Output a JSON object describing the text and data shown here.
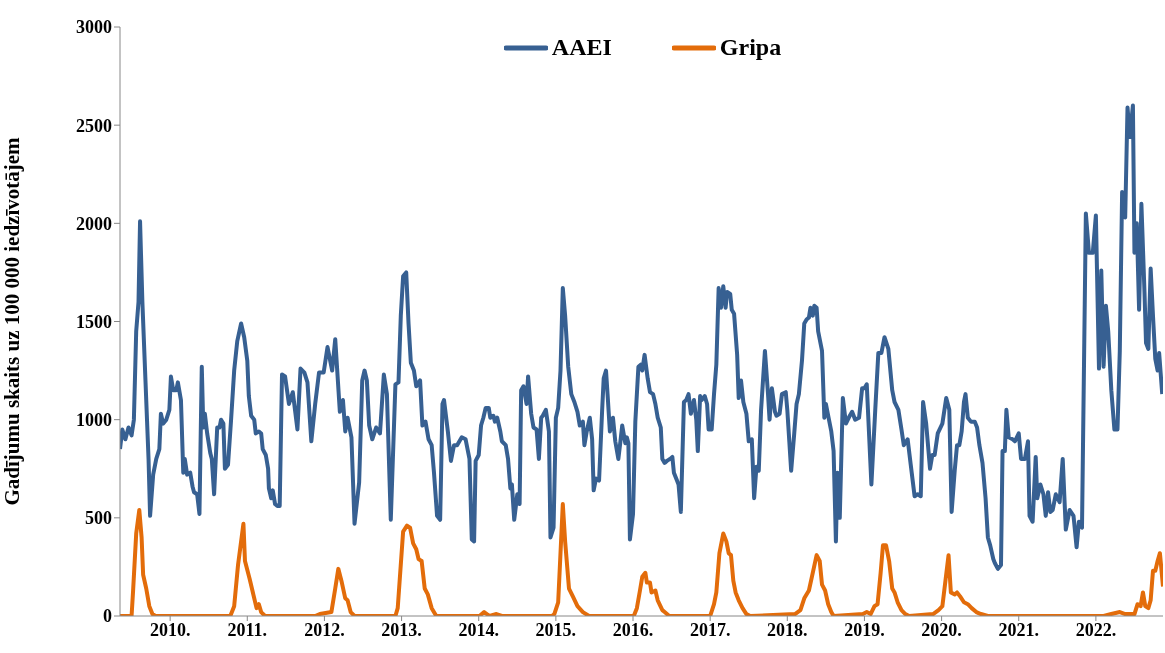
{
  "chart_data": {
    "type": "line",
    "ylabel": "Gadījumu skaits uz 100 000 iedzīvotājem",
    "xlim": [
      2009.85,
      2023.37
    ],
    "xticks": [
      {
        "value": 2010.5,
        "label": "2010."
      },
      {
        "value": 2011.5,
        "label": "2011."
      },
      {
        "value": 2012.5,
        "label": "2012."
      },
      {
        "value": 2013.5,
        "label": "2013."
      },
      {
        "value": 2014.5,
        "label": "2014."
      },
      {
        "value": 2015.5,
        "label": "2015."
      },
      {
        "value": 2016.5,
        "label": "2016."
      },
      {
        "value": 2017.5,
        "label": "2017."
      },
      {
        "value": 2018.5,
        "label": "2018."
      },
      {
        "value": 2019.5,
        "label": "2019."
      },
      {
        "value": 2020.5,
        "label": "2020."
      },
      {
        "value": 2021.5,
        "label": "2021."
      },
      {
        "value": 2022.5,
        "label": "2022."
      }
    ],
    "ylim": [
      0,
      3000
    ],
    "yticks": [
      0,
      500,
      1000,
      1500,
      2000,
      2500,
      3000
    ],
    "grid": false,
    "legend": "top",
    "marker": "none",
    "line_style": "solid",
    "series": [
      {
        "name": "AAEI",
        "color": "#376092",
        "x": [
          2009.85,
          2009.88,
          2009.92,
          2009.96,
          2010.0,
          2010.03,
          2010.06,
          2010.09,
          2010.11,
          2010.14,
          2010.18,
          2010.22,
          2010.24,
          2010.28,
          2010.32,
          2010.36,
          2010.38,
          2010.41,
          2010.45,
          2010.49,
          2010.51,
          2010.54,
          2010.58,
          2010.6,
          2010.64,
          2010.67,
          2010.69,
          2010.72,
          2010.76,
          2010.79,
          2010.81,
          2010.85,
          2010.88,
          2010.91,
          2010.93,
          2010.95,
          2010.98,
          2011.02,
          2011.04,
          2011.07,
          2011.11,
          2011.14,
          2011.16,
          2011.19,
          2011.21,
          2011.25,
          2011.29,
          2011.33,
          2011.37,
          2011.42,
          2011.46,
          2011.5,
          2011.52,
          2011.55,
          2011.59,
          2011.61,
          2011.65,
          2011.68,
          2011.7,
          2011.74,
          2011.77,
          2011.78,
          2011.81,
          2011.83,
          2011.86,
          2011.89,
          2011.92,
          2011.95,
          2011.99,
          2012.04,
          2012.09,
          2012.15,
          2012.19,
          2012.24,
          2012.28,
          2012.33,
          2012.38,
          2012.43,
          2012.49,
          2012.54,
          2012.6,
          2012.64,
          2012.7,
          2012.74,
          2012.77,
          2012.8,
          2012.85,
          2012.89,
          2012.95,
          2012.99,
          2013.02,
          2013.05,
          2013.08,
          2013.12,
          2013.17,
          2013.22,
          2013.27,
          2013.31,
          2013.36,
          2013.42,
          2013.46,
          2013.49,
          2013.52,
          2013.56,
          2013.59,
          2013.62,
          2013.66,
          2013.69,
          2013.74,
          2013.77,
          2013.81,
          2013.85,
          2013.89,
          2013.92,
          2013.96,
          2014.0,
          2014.03,
          2014.05,
          2014.1,
          2014.14,
          2014.18,
          2014.22,
          2014.28,
          2014.33,
          2014.38,
          2014.41,
          2014.44,
          2014.46,
          2014.5,
          2014.53,
          2014.56,
          2014.59,
          2014.63,
          2014.65,
          2014.69,
          2014.71,
          2014.74,
          2014.78,
          2014.8,
          2014.85,
          2014.88,
          2014.91,
          2014.93,
          2014.96,
          2015.0,
          2015.03,
          2015.05,
          2015.08,
          2015.12,
          2015.14,
          2015.18,
          2015.21,
          2015.25,
          2015.28,
          2015.31,
          2015.33,
          2015.37,
          2015.41,
          2015.43,
          2015.47,
          2015.5,
          2015.53,
          2015.56,
          2015.59,
          2015.62,
          2015.66,
          2015.7,
          2015.74,
          2015.78,
          2015.81,
          2015.85,
          2015.87,
          2015.9,
          2015.94,
          2015.97,
          2015.99,
          2016.02,
          2016.06,
          2016.1,
          2016.12,
          2016.15,
          2016.17,
          2016.2,
          2016.24,
          2016.27,
          2016.31,
          2016.34,
          2016.36,
          2016.4,
          2016.42,
          2016.44,
          2016.46,
          2016.5,
          2016.53,
          2016.57,
          2016.6,
          2016.62,
          2016.65,
          2016.69,
          2016.72,
          2016.76,
          2016.79,
          2016.82,
          2016.86,
          2016.88,
          2016.91,
          2016.94,
          2016.98,
          2017.01,
          2017.03,
          2017.07,
          2017.09,
          2017.12,
          2017.16,
          2017.19,
          2017.22,
          2017.25,
          2017.29,
          2017.32,
          2017.34,
          2017.37,
          2017.39,
          2017.43,
          2017.46,
          2017.48,
          2017.52,
          2017.55,
          2017.58,
          2017.61,
          2017.64,
          2017.67,
          2017.7,
          2017.72,
          2017.76,
          2017.78,
          2017.81,
          2017.85,
          2017.87,
          2017.9,
          2017.93,
          2017.97,
          2018.0,
          2018.04,
          2018.07,
          2018.1,
          2018.13,
          2018.16,
          2018.21,
          2018.25,
          2018.27,
          2018.3,
          2018.34,
          2018.36,
          2018.4,
          2018.43,
          2018.48,
          2018.5,
          2018.55,
          2018.59,
          2018.62,
          2018.65,
          2018.69,
          2018.72,
          2018.75,
          2018.78,
          2018.8,
          2018.83,
          2018.85,
          2018.88,
          2018.9,
          2018.95,
          2018.98,
          2019.0,
          2019.04,
          2019.07,
          2019.1,
          2019.13,
          2019.15,
          2019.18,
          2019.22,
          2019.26,
          2019.31,
          2019.34,
          2019.38,
          2019.43,
          2019.47,
          2019.5,
          2019.53,
          2019.59,
          2019.64,
          2019.68,
          2019.72,
          2019.76,
          2019.81,
          2019.86,
          2019.89,
          2019.94,
          2019.98,
          2020.01,
          2020.06,
          2020.1,
          2020.15,
          2020.19,
          2020.23,
          2020.26,
          2020.3,
          2020.35,
          2020.38,
          2020.41,
          2020.45,
          2020.51,
          2020.56,
          2020.6,
          2020.63,
          2020.67,
          2020.7,
          2020.73,
          2020.76,
          2020.79,
          2020.81,
          2020.84,
          2020.88,
          2020.93,
          2020.96,
          2020.99,
          2021.03,
          2021.07,
          2021.1,
          2021.13,
          2021.17,
          2021.19,
          2021.23,
          2021.27,
          2021.29,
          2021.32,
          2021.34,
          2021.37,
          2021.42,
          2021.45,
          2021.5,
          2021.53,
          2021.58,
          2021.62,
          2021.64,
          2021.68,
          2021.72,
          2021.74,
          2021.78,
          2021.82,
          2021.85,
          2021.88,
          2021.91,
          2021.94,
          2021.98,
          2022.03,
          2022.07,
          2022.11,
          2022.16,
          2022.21,
          2022.25,
          2022.28,
          2022.32,
          2022.37,
          2022.41,
          2022.46,
          2022.5,
          2022.54,
          2022.57,
          2022.6,
          2022.63,
          2022.66,
          2022.7,
          2022.74,
          2022.78,
          2022.81,
          2022.84,
          2022.88,
          2022.91,
          2022.94,
          2022.98,
          2023.0,
          2023.03,
          2023.06,
          2023.09,
          2023.13,
          2023.15,
          2023.18,
          2023.21,
          2023.24,
          2023.27,
          2023.3,
          2023.32,
          2023.36
        ],
        "values": [
          850,
          950,
          900,
          960,
          920,
          1000,
          1450,
          1600,
          2010,
          1600,
          1200,
          800,
          510,
          720,
          800,
          850,
          1030,
          980,
          1000,
          1050,
          1220,
          1150,
          1150,
          1190,
          1100,
          730,
          800,
          720,
          730,
          660,
          630,
          620,
          520,
          1270,
          960,
          1030,
          930,
          830,
          800,
          620,
          960,
          960,
          1000,
          980,
          750,
          770,
          1000,
          1250,
          1400,
          1490,
          1420,
          1300,
          1120,
          1020,
          1000,
          930,
          940,
          930,
          850,
          820,
          750,
          650,
          600,
          640,
          570,
          560,
          560,
          1230,
          1220,
          1080,
          1140,
          950,
          1260,
          1240,
          1190,
          890,
          1080,
          1240,
          1240,
          1370,
          1250,
          1410,
          1040,
          1100,
          940,
          1010,
          910,
          470,
          680,
          1200,
          1250,
          1200,
          970,
          900,
          960,
          930,
          1230,
          1130,
          490,
          1180,
          1190,
          1530,
          1730,
          1750,
          1490,
          1290,
          1250,
          1170,
          1200,
          970,
          990,
          900,
          870,
          730,
          510,
          490,
          1080,
          1100,
          940,
          790,
          870,
          870,
          910,
          900,
          800,
          390,
          380,
          790,
          820,
          970,
          1010,
          1060,
          1060,
          1010,
          1020,
          990,
          1010,
          940,
          890,
          870,
          800,
          650,
          670,
          490,
          620,
          570,
          1150,
          1170,
          1080,
          1220,
          1030,
          960,
          950,
          800,
          1010,
          1020,
          1050,
          940,
          400,
          450,
          1010,
          1060,
          1250,
          1670,
          1530,
          1270,
          1130,
          1090,
          1040,
          970,
          990,
          870,
          940,
          1010,
          900,
          640,
          700,
          690,
          1050,
          1210,
          1250,
          1130,
          940,
          1010,
          890,
          800,
          900,
          970,
          880,
          910,
          880,
          390,
          520,
          990,
          1270,
          1280,
          1250,
          1330,
          1210,
          1140,
          1130,
          1080,
          1010,
          960,
          800,
          780,
          790,
          800,
          810,
          730,
          690,
          670,
          530,
          1090,
          1100,
          1130,
          1030,
          1100,
          1000,
          840,
          1120,
          1100,
          1120,
          1080,
          950,
          950,
          1130,
          1280,
          1670,
          1570,
          1680,
          1570,
          1650,
          1640,
          1560,
          1540,
          1330,
          1110,
          1200,
          1090,
          1030,
          890,
          900,
          600,
          760,
          740,
          1050,
          1350,
          1130,
          1000,
          1160,
          1040,
          1020,
          1030,
          1130,
          1140,
          1050,
          740,
          930,
          1080,
          1130,
          1300,
          1490,
          1510,
          1520,
          1570,
          1530,
          1580,
          1570,
          1450,
          1350,
          1010,
          1080,
          1000,
          940,
          840,
          380,
          730,
          500,
          1110,
          980,
          1020,
          1040,
          1000,
          1010,
          1160,
          1160,
          1180,
          670,
          1050,
          1340,
          1340,
          1420,
          1360,
          1150,
          1090,
          1050,
          950,
          870,
          900,
          770,
          610,
          620,
          610,
          1090,
          980,
          750,
          820,
          820,
          930,
          980,
          1110,
          1050,
          530,
          740,
          870,
          870,
          940,
          1090,
          1130,
          1010,
          990,
          990,
          960,
          870,
          780,
          600,
          400,
          360,
          290,
          270,
          240,
          260,
          840,
          840,
          1050,
          910,
          900,
          890,
          930,
          800,
          800,
          890,
          510,
          480,
          810,
          600,
          670,
          620,
          510,
          630,
          530,
          540,
          620,
          580,
          800,
          440,
          540,
          510,
          350,
          480,
          450,
          2050,
          1850,
          1850,
          2040,
          1260,
          1760,
          1270,
          1580,
          1450,
          1150,
          950,
          950,
          1350,
          2160,
          2030,
          2590,
          2440,
          2600,
          1850,
          2000,
          1560,
          2100,
          1650,
          1390,
          1360,
          1770,
          1530,
          1310,
          1250,
          1340,
          1130
        ]
      },
      {
        "name": "Gripa",
        "color": "#e36c0a",
        "x": [
          2009.85,
          2010.0,
          2010.02,
          2010.06,
          2010.1,
          2010.13,
          2010.15,
          2010.19,
          2010.23,
          2010.27,
          2010.31,
          2011.28,
          2011.33,
          2011.38,
          2011.45,
          2011.47,
          2011.53,
          2011.59,
          2011.62,
          2011.65,
          2011.68,
          2011.73,
          2012.38,
          2012.44,
          2012.59,
          2012.64,
          2012.68,
          2012.72,
          2012.77,
          2012.8,
          2012.84,
          2012.89,
          2013.42,
          2013.45,
          2013.52,
          2013.57,
          2013.61,
          2013.65,
          2013.69,
          2013.72,
          2013.76,
          2013.8,
          2013.84,
          2013.89,
          2013.95,
          2014.51,
          2014.57,
          2014.64,
          2014.73,
          2014.8,
          2015.45,
          2015.48,
          2015.53,
          2015.59,
          2015.62,
          2015.67,
          2015.72,
          2015.78,
          2015.85,
          2015.93,
          2016.51,
          2016.55,
          2016.59,
          2016.62,
          2016.66,
          2016.68,
          2016.72,
          2016.74,
          2016.79,
          2016.82,
          2016.88,
          2016.91,
          2016.97,
          2017.5,
          2017.55,
          2017.58,
          2017.62,
          2017.67,
          2017.71,
          2017.74,
          2017.77,
          2017.8,
          2017.83,
          2017.87,
          2017.92,
          2017.97,
          2018.02,
          2018.6,
          2018.67,
          2018.72,
          2018.78,
          2018.83,
          2018.88,
          2018.92,
          2018.95,
          2018.99,
          2019.03,
          2019.07,
          2019.1,
          2019.48,
          2019.53,
          2019.58,
          2019.63,
          2019.67,
          2019.71,
          2019.74,
          2019.78,
          2019.82,
          2019.86,
          2019.89,
          2019.93,
          2019.98,
          2020.03,
          2020.08,
          2020.39,
          2020.46,
          2020.51,
          2020.55,
          2020.59,
          2020.62,
          2020.67,
          2020.7,
          2020.74,
          2020.79,
          2020.84,
          2020.89,
          2020.95,
          2021.01,
          2021.1,
          2022.6,
          2022.7,
          2022.81,
          2022.88,
          2023.0,
          2023.04,
          2023.08,
          2023.11,
          2023.14,
          2023.18,
          2023.21,
          2023.24,
          2023.27,
          2023.3,
          2023.33,
          2023.37
        ],
        "values": [
          0,
          0,
          130,
          420,
          540,
          400,
          210,
          140,
          50,
          10,
          0,
          0,
          50,
          260,
          470,
          280,
          190,
          90,
          40,
          60,
          20,
          0,
          0,
          10,
          20,
          140,
          240,
          180,
          90,
          80,
          20,
          0,
          0,
          40,
          430,
          460,
          450,
          370,
          340,
          290,
          280,
          140,
          110,
          40,
          0,
          0,
          20,
          0,
          10,
          0,
          0,
          10,
          70,
          570,
          380,
          140,
          100,
          50,
          20,
          0,
          0,
          40,
          130,
          200,
          220,
          170,
          170,
          120,
          130,
          80,
          30,
          20,
          0,
          0,
          60,
          120,
          320,
          420,
          380,
          320,
          310,
          180,
          120,
          80,
          40,
          10,
          0,
          10,
          30,
          90,
          130,
          220,
          310,
          280,
          160,
          130,
          60,
          20,
          0,
          10,
          20,
          10,
          50,
          60,
          220,
          360,
          360,
          280,
          140,
          120,
          70,
          30,
          10,
          0,
          10,
          30,
          50,
          180,
          310,
          120,
          110,
          120,
          100,
          70,
          60,
          40,
          20,
          10,
          0,
          0,
          10,
          20,
          10,
          10,
          60,
          50,
          120,
          50,
          40,
          80,
          230,
          230,
          280,
          320,
          150
        ]
      }
    ]
  }
}
